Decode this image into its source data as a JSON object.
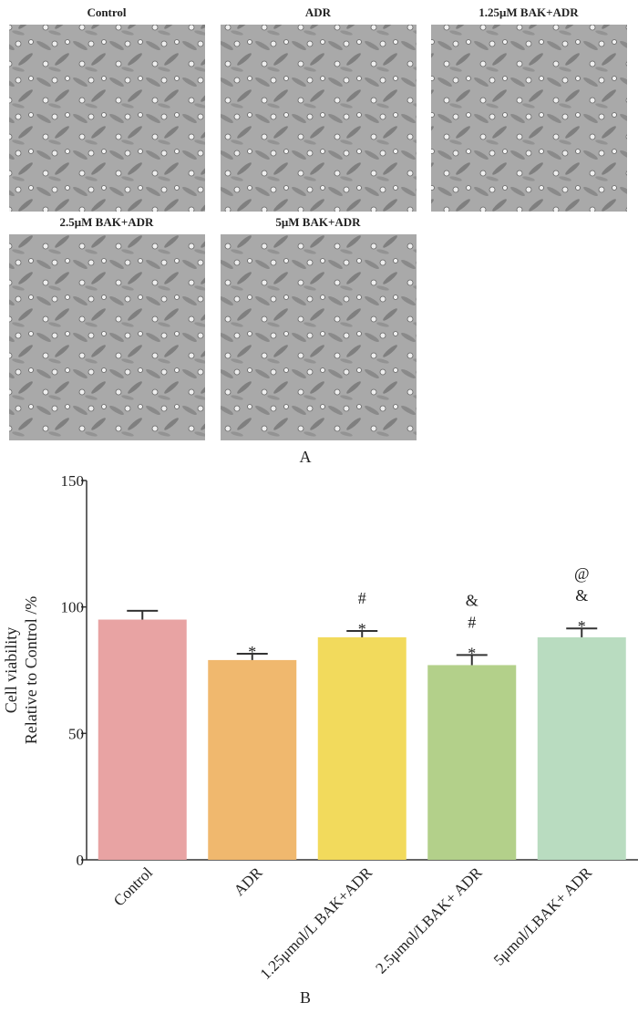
{
  "images": {
    "labels": [
      "Control",
      "ADR",
      "1.25μM BAK+ADR",
      "2.5μM BAK+ADR",
      "5μM BAK+ADR"
    ]
  },
  "panel_labels": [
    "A",
    "B"
  ],
  "chart_data": {
    "type": "bar",
    "y_label": [
      "Cell viability",
      "Relative to Control /%"
    ],
    "categories": [
      "Control",
      "ADR",
      "1.25μmol/L BAK+ADR",
      "2.5μmol/LBAK+ ADR",
      "5μmol/LBAK+ ADR"
    ],
    "values": [
      95,
      79,
      88,
      77,
      88
    ],
    "errors": [
      3.5,
      2.5,
      2.5,
      4,
      3.5
    ],
    "colors": [
      "#e8a3a3",
      "#f0b86e",
      "#f2da5c",
      "#b3d08a",
      "#b9dcc0"
    ],
    "significance": [
      [],
      [
        "*"
      ],
      [
        "#",
        "*"
      ],
      [
        "&",
        "#",
        "*"
      ],
      [
        "@",
        "&",
        "*"
      ]
    ],
    "ylim": [
      0,
      150
    ],
    "yticks": [
      0,
      50,
      100,
      150
    ]
  }
}
